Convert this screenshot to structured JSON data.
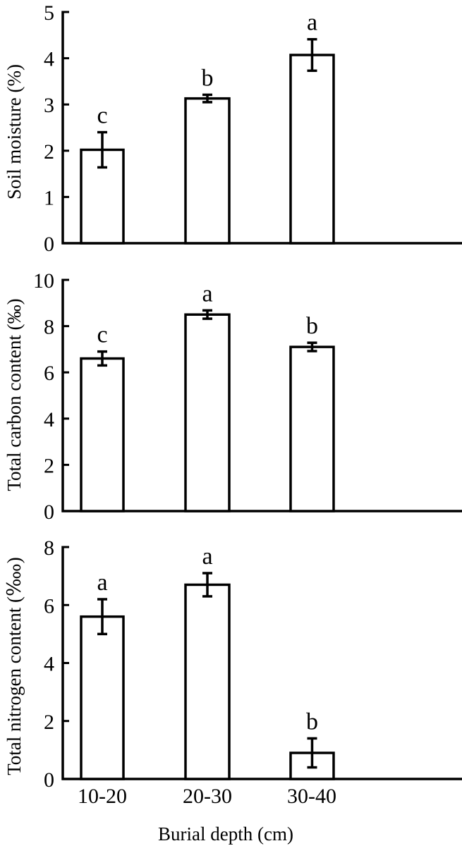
{
  "chart_data": [
    {
      "type": "bar",
      "panel": "top",
      "title": "",
      "xlabel": "",
      "ylabel": "Soil moisture (%)",
      "ylim": [
        0,
        5
      ],
      "yticks": [
        "0",
        "1",
        "2",
        "3",
        "4",
        "5"
      ],
      "categories": [
        "10-20",
        "20-30",
        "30-40"
      ],
      "values": [
        2.02,
        3.13,
        4.07
      ],
      "errors": [
        0.38,
        0.08,
        0.34
      ],
      "significance": [
        "c",
        "b",
        "a"
      ],
      "grid": false
    },
    {
      "type": "bar",
      "panel": "middle",
      "title": "",
      "xlabel": "",
      "ylabel": "Total carbon content (‰)",
      "ylim": [
        0,
        10
      ],
      "yticks": [
        "0",
        "2",
        "4",
        "6",
        "8",
        "10"
      ],
      "categories": [
        "10-20",
        "20-30",
        "30-40"
      ],
      "values": [
        6.6,
        8.5,
        7.1
      ],
      "errors": [
        0.3,
        0.18,
        0.18
      ],
      "significance": [
        "c",
        "a",
        "b"
      ],
      "grid": false
    },
    {
      "type": "bar",
      "panel": "bottom",
      "title": "",
      "xlabel": "Burial depth (cm)",
      "ylabel": "Total nitrogen content (‱)",
      "ylim": [
        0,
        8
      ],
      "yticks": [
        "0",
        "2",
        "4",
        "6",
        "8"
      ],
      "categories": [
        "10-20",
        "20-30",
        "30-40"
      ],
      "values": [
        5.6,
        6.7,
        0.9
      ],
      "errors": [
        0.6,
        0.4,
        0.5
      ],
      "significance": [
        "a",
        "a",
        "b"
      ],
      "grid": false
    }
  ],
  "labels": {
    "panel1_ylabel": "Soil moisture (%)",
    "panel2_ylabel": "Total carbon content (‰)",
    "panel3_ylabel": "Total nitrogen content (‱)",
    "xlabel": "Burial depth (cm)",
    "categories": [
      "10-20",
      "20-30",
      "30-40"
    ]
  }
}
